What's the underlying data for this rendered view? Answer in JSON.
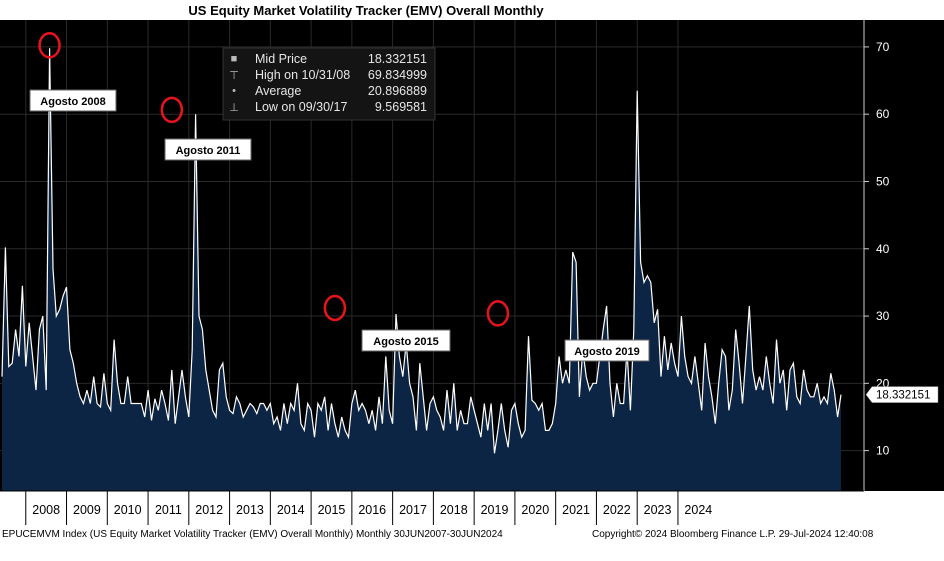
{
  "title": "US Equity Market Volatility Tracker (EMV) Overall Monthly",
  "legend": {
    "items": [
      {
        "icon": "square-icon",
        "label": "Mid Price",
        "value": "18.332151"
      },
      {
        "icon": "high-marker-icon",
        "label": "High on 10/31/08",
        "value": "69.834999"
      },
      {
        "icon": "average-marker-icon",
        "label": "Average",
        "value": "20.896889"
      },
      {
        "icon": "low-marker-icon",
        "label": "Low on 09/30/17",
        "value": "9.569581"
      }
    ]
  },
  "price_tag": "18.332151",
  "footer": {
    "left": "EPUCEMVM Index (US Equity Market Volatility Tracker (EMV) Overall Monthly)  Monthly 30JUN2007-30JUN2024",
    "right": "Copyright© 2024 Bloomberg Finance L.P.      29-Jul-2024 12:40:08"
  },
  "colors": {
    "background": "#000000",
    "area": "#0d2544",
    "line": "#ffffff",
    "highlight": "#e8141c",
    "gridline": "#2a2a2a"
  },
  "chart_data": {
    "type": "area",
    "title": "US Equity Market Volatility Tracker (EMV) Overall Monthly",
    "x_start": "2007-06",
    "x_end": "2024-06",
    "frequency": "monthly",
    "ylim": [
      4,
      74
    ],
    "yticks": [
      10,
      20,
      30,
      40,
      50,
      60,
      70
    ],
    "xtick_labels": [
      "2008",
      "2009",
      "2010",
      "2011",
      "2012",
      "2013",
      "2014",
      "2015",
      "2016",
      "2017",
      "2018",
      "2019",
      "2020",
      "2021",
      "2022",
      "2023",
      "2024"
    ],
    "grid": true,
    "y_axis_side": "right",
    "last_value": 18.332151,
    "series": [
      {
        "values": [
          21,
          40.2,
          22.5,
          23,
          28,
          24,
          34.5,
          22.5,
          29,
          24,
          19,
          28,
          30,
          19,
          69.8,
          37,
          30,
          31,
          33,
          34.3,
          25,
          23,
          20,
          18,
          17,
          19,
          17,
          21,
          17,
          16.5,
          21.5,
          17,
          16,
          26.5,
          20,
          17,
          17,
          21,
          17,
          17,
          17,
          17,
          15,
          19,
          14.5,
          17.7,
          16,
          19,
          17,
          14.5,
          22,
          14,
          18,
          22,
          18,
          15,
          25,
          60,
          30,
          28,
          22,
          19,
          16,
          15,
          22,
          23,
          18,
          16,
          15.5,
          18,
          17,
          15,
          16,
          17,
          16.5,
          15.5,
          17,
          17,
          16,
          17,
          14,
          15,
          13,
          17,
          14,
          17,
          16,
          20,
          14,
          13,
          17,
          16,
          12,
          17,
          16,
          18,
          13,
          17,
          14,
          12,
          15,
          13,
          12,
          17,
          19,
          16,
          17,
          16,
          14,
          16,
          13,
          18,
          14,
          24,
          16,
          14,
          30.3,
          24,
          21,
          26,
          20,
          18,
          13,
          23,
          18,
          13,
          17,
          18,
          16,
          15,
          13,
          19,
          14,
          20,
          13,
          16,
          14,
          14,
          18,
          16,
          14,
          12,
          17,
          13,
          17,
          9.6,
          13,
          17,
          13,
          10.5,
          16,
          17,
          14,
          12,
          13,
          27,
          17.5,
          17,
          16,
          17,
          13,
          13,
          14,
          17,
          24,
          20,
          22,
          20,
          39.5,
          38,
          18,
          25,
          21,
          19,
          20,
          20,
          24,
          28,
          31.5,
          20,
          15,
          20,
          17,
          17,
          25,
          16,
          28,
          63.5,
          38,
          35,
          36,
          35,
          29,
          31,
          21,
          27,
          22,
          26,
          23,
          21,
          30,
          24,
          21,
          20,
          24,
          20,
          16,
          26,
          21,
          18,
          14,
          20,
          25,
          24,
          16,
          19,
          28,
          23,
          17,
          24,
          31.5,
          22,
          19,
          21,
          19,
          24,
          20,
          17,
          26.5,
          20,
          22,
          16,
          22,
          23,
          18,
          17,
          22,
          19,
          18,
          18,
          20,
          17,
          18,
          17,
          21.5,
          19,
          15,
          18.33
        ]
      }
    ],
    "annotations": [
      {
        "label": "Agosto 2008",
        "year": 2008,
        "value": 69.8
      },
      {
        "label": "Agosto 2011",
        "year": 2011,
        "value": 60.5
      },
      {
        "label": "Agosto 2015",
        "year": 2015,
        "value": 30.9
      },
      {
        "label": "Agosto 2019",
        "year": 2019,
        "value": 30.1
      }
    ]
  }
}
